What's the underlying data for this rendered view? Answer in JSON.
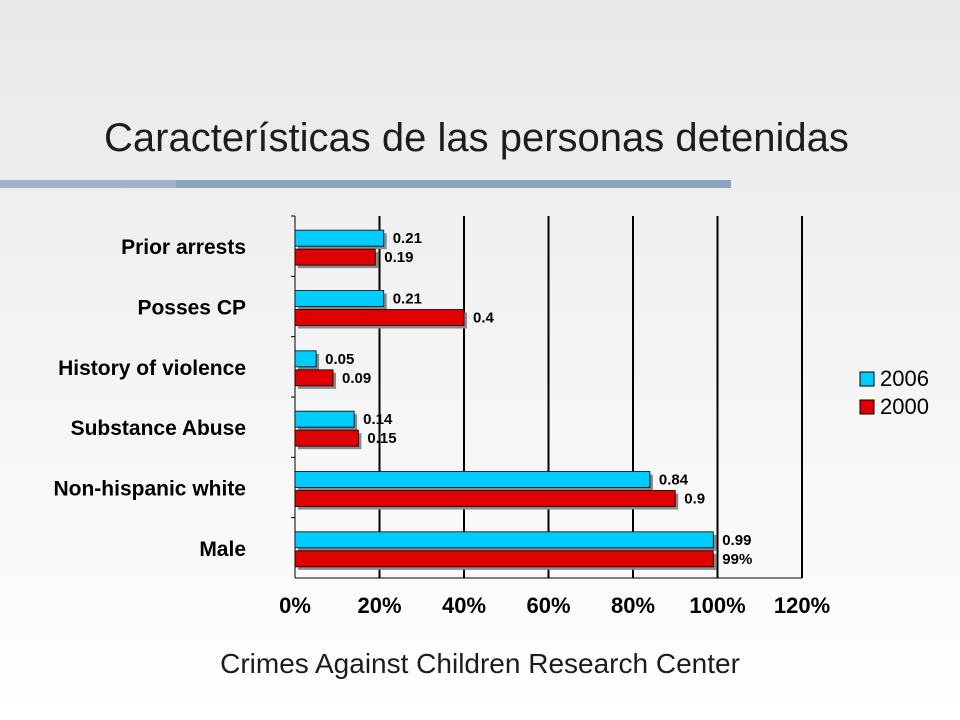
{
  "slide": {
    "title": "Características de las personas detenidas",
    "footer": "Crimes Against Children Research Center"
  },
  "chart_data": {
    "type": "bar",
    "orientation": "horizontal",
    "categories": [
      "Prior arrests",
      "Posses CP",
      "History of violence",
      "Substance Abuse",
      "Non-hispanic white",
      "Male"
    ],
    "series": [
      {
        "name": "2006",
        "color": "#00ccff",
        "values": [
          0.21,
          0.21,
          0.05,
          0.14,
          0.84,
          0.99
        ],
        "labels": [
          "0.21",
          "0.21",
          "0.05",
          "0.14",
          "0.84",
          "0.99"
        ]
      },
      {
        "name": "2000",
        "color": "#e00000",
        "values": [
          0.19,
          0.4,
          0.09,
          0.15,
          0.9,
          0.99
        ],
        "labels": [
          "0.19",
          "0.4",
          "0.09",
          "0.15",
          "0.9",
          "99%"
        ]
      }
    ],
    "xlim": [
      0,
      1.2
    ],
    "xticks": [
      "0%",
      "20%",
      "40%",
      "60%",
      "80%",
      "100%",
      "120%"
    ],
    "grid": true,
    "legend": "right"
  }
}
